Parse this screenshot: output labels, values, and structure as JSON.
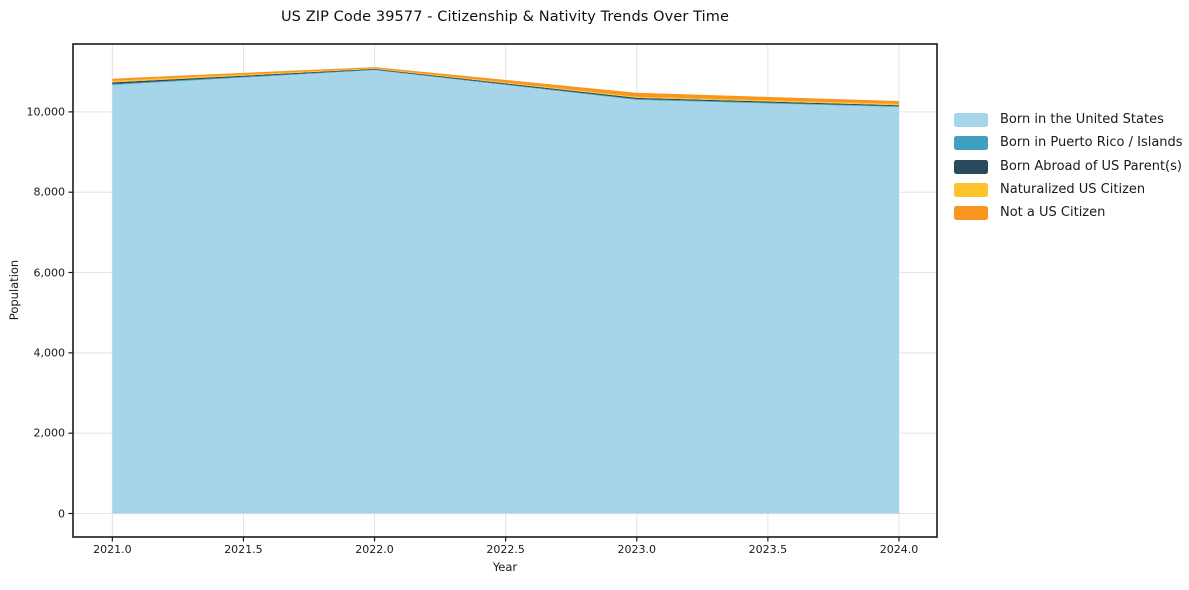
{
  "colors": {
    "background": "#ffffff",
    "frame": "#1a1a1a",
    "grid": "#e4e4e4",
    "text": "#1a1a1a"
  },
  "chart_data": {
    "type": "area",
    "stacked": true,
    "title": "US ZIP Code 39577 - Citizenship & Nativity Trends Over Time",
    "xlabel": "Year",
    "ylabel": "Population",
    "grid": true,
    "legend_position": "right-outside",
    "x": [
      2021,
      2022,
      2023,
      2024
    ],
    "xlim": [
      2020.85,
      2024.145
    ],
    "ylim": [
      -585,
      11690
    ],
    "x_ticks": [
      2021.0,
      2021.5,
      2022.0,
      2022.5,
      2023.0,
      2023.5,
      2024.0
    ],
    "x_tick_labels": [
      "2021.0",
      "2021.5",
      "2022.0",
      "2022.5",
      "2023.0",
      "2023.5",
      "2024.0"
    ],
    "y_ticks": [
      0,
      2000,
      4000,
      6000,
      8000,
      10000
    ],
    "y_tick_labels": [
      "0",
      "2,000",
      "4,000",
      "6,000",
      "8,000",
      "10,000"
    ],
    "series": [
      {
        "name": "Born in the United States",
        "color": "#a6d4e8",
        "values": [
          10670,
          11040,
          10300,
          10120
        ]
      },
      {
        "name": "Born in Puerto Rico / Islands",
        "color": "#3fa0bf",
        "values": [
          25,
          12,
          20,
          20
        ]
      },
      {
        "name": "Born Abroad of US Parent(s)",
        "color": "#29495c",
        "values": [
          38,
          18,
          30,
          25
        ]
      },
      {
        "name": "Naturalized US Citizen",
        "color": "#fcc32d",
        "values": [
          38,
          15,
          25,
          30
        ]
      },
      {
        "name": "Not a US Citizen",
        "color": "#f8961f",
        "values": [
          55,
          30,
          100,
          75
        ]
      }
    ],
    "stacked_totals": [
      10826,
      11115,
      10475,
      10270
    ]
  }
}
